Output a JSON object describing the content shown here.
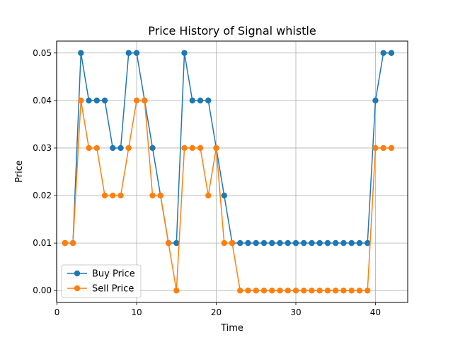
{
  "chart_data": {
    "type": "line",
    "title": "Price History of Signal whistle",
    "xlabel": "Time",
    "ylabel": "Price",
    "xlim": [
      -0.05,
      44.05
    ],
    "ylim": [
      -0.0025,
      0.0525
    ],
    "xticks": [
      0,
      10,
      20,
      30,
      40
    ],
    "xtick_labels": [
      "0",
      "10",
      "20",
      "30",
      "40"
    ],
    "yticks": [
      0.0,
      0.01,
      0.02,
      0.03,
      0.04,
      0.05
    ],
    "ytick_labels": [
      "0.00",
      "0.01",
      "0.02",
      "0.03",
      "0.04",
      "0.05"
    ],
    "grid": true,
    "legend_position": "lower-left",
    "x": [
      1,
      2,
      3,
      4,
      5,
      6,
      7,
      8,
      9,
      10,
      11,
      12,
      13,
      14,
      15,
      16,
      17,
      18,
      19,
      20,
      21,
      22,
      23,
      24,
      25,
      26,
      27,
      28,
      29,
      30,
      31,
      32,
      33,
      34,
      35,
      36,
      37,
      38,
      39,
      40,
      41,
      42
    ],
    "series": [
      {
        "name": "Buy Price",
        "color": "#1f77b4",
        "values": [
          0.01,
          0.01,
          0.05,
          0.04,
          0.04,
          0.04,
          0.03,
          0.03,
          0.05,
          0.05,
          0.04,
          0.03,
          0.02,
          0.01,
          0.01,
          0.05,
          0.04,
          0.04,
          0.04,
          0.03,
          0.02,
          0.01,
          0.01,
          0.01,
          0.01,
          0.01,
          0.01,
          0.01,
          0.01,
          0.01,
          0.01,
          0.01,
          0.01,
          0.01,
          0.01,
          0.01,
          0.01,
          0.01,
          0.01,
          0.04,
          0.05,
          0.05
        ]
      },
      {
        "name": "Sell Price",
        "color": "#ff7f0e",
        "values": [
          0.01,
          0.01,
          0.04,
          0.03,
          0.03,
          0.02,
          0.02,
          0.02,
          0.03,
          0.04,
          0.04,
          0.02,
          0.02,
          0.01,
          0.0,
          0.03,
          0.03,
          0.03,
          0.02,
          0.03,
          0.01,
          0.01,
          0.0,
          0.0,
          0.0,
          0.0,
          0.0,
          0.0,
          0.0,
          0.0,
          0.0,
          0.0,
          0.0,
          0.0,
          0.0,
          0.0,
          0.0,
          0.0,
          0.0,
          0.03,
          0.03,
          0.03
        ]
      }
    ]
  }
}
